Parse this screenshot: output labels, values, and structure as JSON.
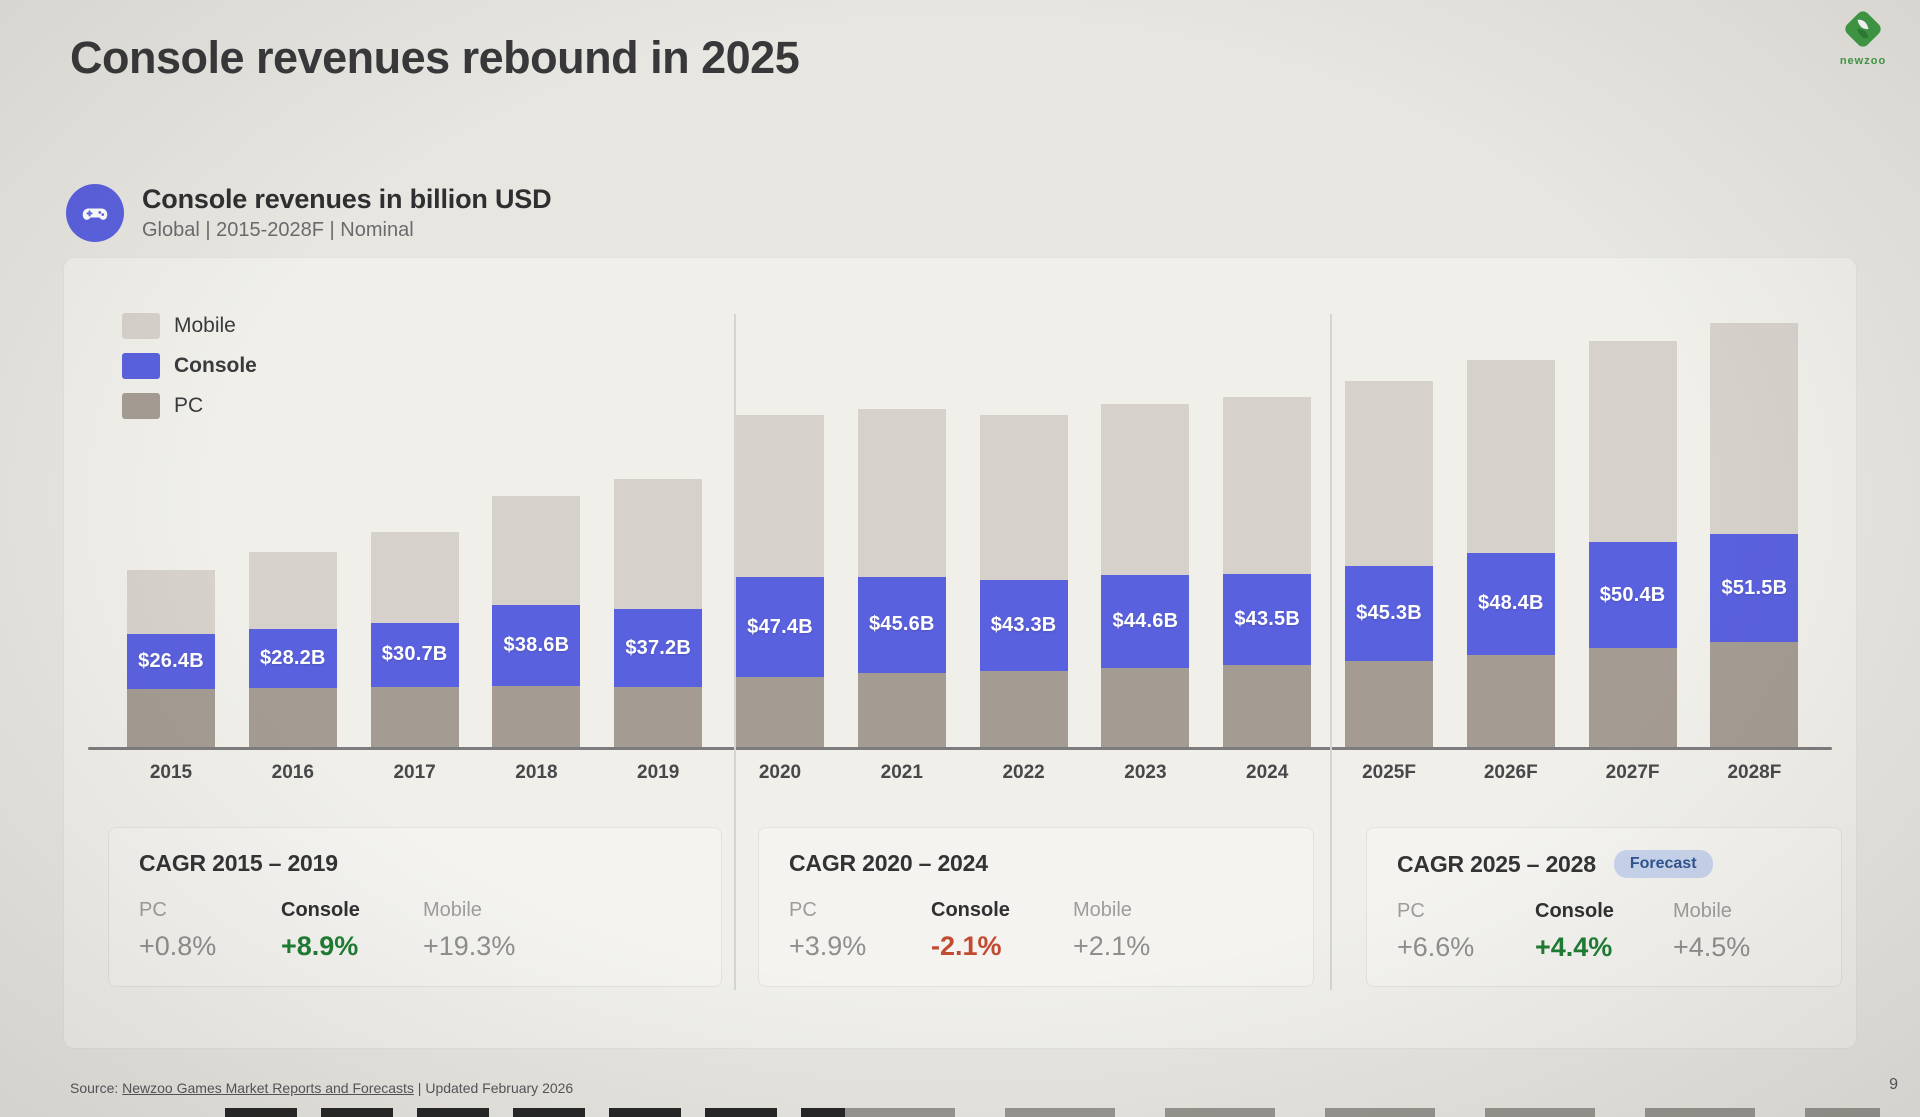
{
  "slide": {
    "title": "Console revenues rebound in 2025",
    "page_number": "9",
    "logo_text": "newzoo",
    "source_prefix": "Source:",
    "source_link": "Newzoo Games Market Reports and Forecasts",
    "source_suffix": " | Updated February 2026"
  },
  "chart_header": {
    "icon": "gamepad-icon",
    "title": "Console revenues in billion USD",
    "subtitle": "Global | 2015-2028F | Nominal"
  },
  "legend": [
    {
      "label": "Mobile",
      "color": "#d7d1cb",
      "bold": false
    },
    {
      "label": "Console",
      "color": "#5a61de",
      "bold": true
    },
    {
      "label": "PC",
      "color": "#a49b92",
      "bold": false
    }
  ],
  "chart_data": {
    "type": "bar",
    "stacked": true,
    "title": "Console revenues in billion USD",
    "unit": "billion USD",
    "xlabel": "",
    "ylabel": "",
    "y_axis": "no ticks shown; Console segment values labeled on bars",
    "legend_position": "top-left",
    "categories": [
      "2015",
      "2016",
      "2017",
      "2018",
      "2019",
      "2020",
      "2021",
      "2022",
      "2023",
      "2024",
      "2025F",
      "2026F",
      "2027F",
      "2028F"
    ],
    "series": [
      {
        "name": "PC",
        "color": "#a49b92",
        "estimated": true,
        "values": [
          28.0,
          28.6,
          29.0,
          29.4,
          28.9,
          33.9,
          35.9,
          36.7,
          38.0,
          39.5,
          41.5,
          44.5,
          47.5,
          50.3
        ]
      },
      {
        "name": "Console",
        "color": "#5a61de",
        "estimated": false,
        "values": [
          26.4,
          28.2,
          30.7,
          38.6,
          37.2,
          47.4,
          45.6,
          43.3,
          44.6,
          43.5,
          45.3,
          48.4,
          50.4,
          51.5
        ],
        "labels": [
          "$26.4B",
          "$28.2B",
          "$30.7B",
          "$38.6B",
          "$37.2B",
          "$47.4B",
          "$45.6B",
          "$43.3B",
          "$44.6B",
          "$43.5B",
          "$45.3B",
          "$48.4B",
          "$50.4B",
          "$51.5B"
        ]
      },
      {
        "name": "Mobile",
        "color": "#d7d1cb",
        "estimated": true,
        "values": [
          30.5,
          36.4,
          43.4,
          51.8,
          61.8,
          77.5,
          80.1,
          78.6,
          81.4,
          84.2,
          88.0,
          92.0,
          96.1,
          100.4
        ]
      }
    ],
    "group_dividers_after": [
      "2019",
      "2024"
    ]
  },
  "cagr_cards": [
    {
      "title": "CAGR 2015 – 2019",
      "badge": null,
      "stats": [
        {
          "label": "PC",
          "value": "+0.8%",
          "emphasis": "muted"
        },
        {
          "label": "Console",
          "value": "+8.9%",
          "emphasis": "positive"
        },
        {
          "label": "Mobile",
          "value": "+19.3%",
          "emphasis": "muted"
        }
      ]
    },
    {
      "title": "CAGR 2020 – 2024",
      "badge": null,
      "stats": [
        {
          "label": "PC",
          "value": "+3.9%",
          "emphasis": "muted"
        },
        {
          "label": "Console",
          "value": "-2.1%",
          "emphasis": "negative"
        },
        {
          "label": "Mobile",
          "value": "+2.1%",
          "emphasis": "muted"
        }
      ]
    },
    {
      "title": "CAGR 2025 – 2028",
      "badge": "Forecast",
      "stats": [
        {
          "label": "PC",
          "value": "+6.6%",
          "emphasis": "muted"
        },
        {
          "label": "Console",
          "value": "+4.4%",
          "emphasis": "positive"
        },
        {
          "label": "Mobile",
          "value": "+4.5%",
          "emphasis": "muted"
        }
      ]
    }
  ],
  "colors": {
    "background": "#e8e6e1",
    "panel": "#f0efea",
    "card": "#f4f3ef",
    "mobile": "#d7d1cb",
    "console": "#5a61de",
    "pc": "#a49b92",
    "positive": "#1e7c34",
    "negative": "#c14a30",
    "badge_bg": "#c8d4ec",
    "badge_text": "#31548f",
    "logo_green": "#3f9b45"
  }
}
